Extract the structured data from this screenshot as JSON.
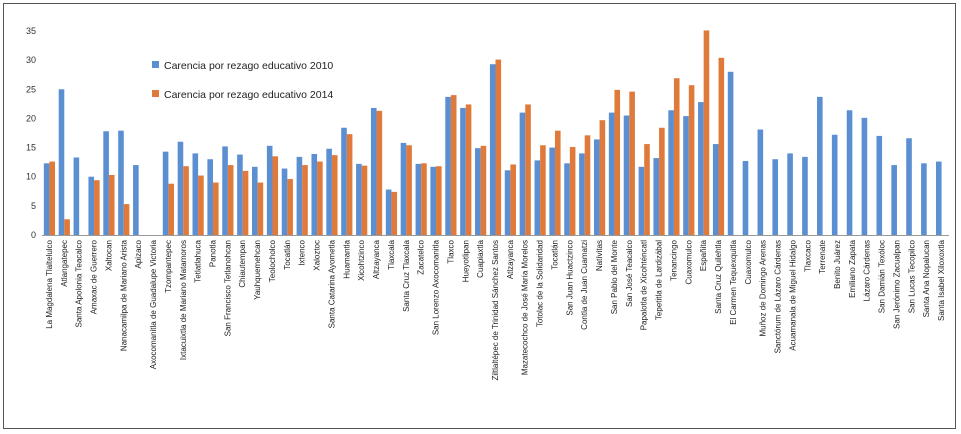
{
  "chart_data": {
    "type": "bar",
    "title": "",
    "xlabel": "",
    "ylabel": "",
    "ylim": [
      0,
      35
    ],
    "yticks": [
      0,
      5,
      10,
      15,
      20,
      25,
      30,
      35
    ],
    "grid": false,
    "legend_position": "top-left",
    "colors": {
      "2010": "#5b8fd1",
      "2014": "#e07a3a"
    },
    "series": [
      {
        "name": "Carencia por rezago educativo 2010"
      },
      {
        "name": "Carencia por rezago educativo 2014"
      }
    ],
    "categories": [
      "La Magdalena Tlaltelulco",
      "Atlangatepec",
      "Santa Apolonia Teacalco",
      "Amaxac de Guerrero",
      "Xaltocan",
      "Nanacamilpa de Mariano Arista",
      "Apizaco",
      "Axocomanitla de Guadalupe Victoria",
      "Tzompantepec",
      "Ixtacuixtla de Mariano Matamoros",
      "Tetlatlahuca",
      "Panotla",
      "San Francisco Tetlanohcan",
      "Chiautempan",
      "Yauhquemehcan",
      "Teolocholco",
      "Tocatlán",
      "Ixtenco",
      "Xaloztoc",
      "Santa Catarina Ayometla",
      "Huamantla",
      "Xicohtzinco",
      "Altzayanca",
      "Tlaxcala",
      "Santa Cruz Tlaxcala",
      "Zacatelco",
      "San Lorenzo Axocomanitla",
      "Tlaxco",
      "Hueyotlipan",
      "Cuapiaxtla",
      "Ziltlaltépec de Trinidad Sánchez Santos",
      "Atlzayanca",
      "Mazatecochco de José María Morelos",
      "Totolac de la Solidaridad",
      "Tocatlán",
      "San Juan Huactzinco",
      "Contla de Juan Cuamatzi",
      "Natívitas",
      "San Pablo del Monte",
      "San José Teacalco",
      "Papalotla de Xicohténcatl",
      "Tepetitla de Lardizábal",
      "Tenancingo",
      "Cuaxomulco",
      "Españita",
      "Santa Cruz Quilehtla",
      "El Carmen Tequexquitla",
      "Cuaxomulco",
      "Muñoz de Domingo Arenas",
      "Sanctórum de Lázaro Cárdenas",
      "Acuamanala de Miguel Hidalgo",
      "Tlaxcaco",
      "Terrenate",
      "Benito Juárez",
      "Emiliano Zapata",
      "Lázaro Cárdenas",
      "San Damián Texóloc",
      "San Jerónimo Zacualpan",
      "San Lucas Tecopilco",
      "Santa Ana Nopalucan",
      "Santa Isabel Xiloxoxtla"
    ],
    "cat_labels": [
      "La Magdalena Tlaltelulco",
      "Atlangatepec",
      "Santa Apolonia Teacalco",
      "Amaxac de Guerrero",
      "Xaltocan",
      "Nanacamilpa de Mariano Arista",
      "Apizaco",
      "Axocomanitla de Guadalupe Victoria",
      "Tzompantepec",
      "Ixtacuixtla de Mariano Matamoros",
      "Tetlatlahuca",
      "Panotla",
      "San Francisco Tetlanohcan",
      "Chiautempan",
      "Yauhquemehcan",
      "Teolocholco",
      "Tocatlán",
      "Ixtenco",
      "Xaloztoc",
      "Santa Catarina Ayometla",
      "Huamantla",
      "Xicohtzinco",
      "Altzayanca",
      "Tlaxcala",
      "Santa Cruz Tlaxcala",
      "Zacatelco",
      "San Lorenzo Axocomanitla",
      "Tlaxco",
      "Hueyotlipan",
      "Cuapiaxtla",
      "Ziltlaltépec de Trinidad Sánchez Santos",
      "Atlzayanca",
      "Mazatecochco de José María Morelos",
      "Totolac de la Solidaridad",
      "Tocatlán",
      "San Juan Huactzinco",
      "Contla de Juan Cuamatzi",
      "Natívitas",
      "San Pablo del Monte",
      "San José Teacalco",
      "Papalotla de Xicohténcatl",
      "Tepetitla de Lardizábal",
      "Tenancingo",
      "Cuaxomulco",
      "Españita",
      "Santa Cruz Quilehtla",
      "El Carmen Tequexquitla",
      "Cuaxomulco",
      "Muñoz de Domingo Arenas",
      "Sanctórum de Lázaro Cárdenas",
      "Acuamanala de Miguel Hidalgo",
      "Tlaxcaco",
      "Terrenate",
      "Benito Juárez",
      "Emiliano Zapata",
      "Lázaro Cárdenas",
      "San Damián Texóloc",
      "San Jerónimo Zacualpan",
      "San Lucas Tecopilco",
      "Santa Ana Nopalucan",
      "Santa Isabel Xiloxoxtla"
    ],
    "values_2010": [
      12.3,
      25.0,
      13.3,
      10.0,
      17.8,
      17.9,
      12.0,
      null,
      14.3,
      16.0,
      14.0,
      13.0,
      15.2,
      13.8,
      11.7,
      15.3,
      11.4,
      13.4,
      13.9,
      14.8,
      18.4,
      12.2,
      21.8,
      7.8,
      15.8,
      12.2,
      11.7,
      23.7,
      21.8,
      14.9,
      29.3,
      11.1,
      21.0,
      12.8,
      15.0,
      12.3,
      14.0,
      16.4,
      21.0,
      20.5,
      11.7,
      13.2,
      21.4,
      20.4,
      22.8,
      15.6,
      28.0,
      12.7,
      18.1,
      13.0,
      14.0,
      13.4,
      23.7,
      17.2,
      21.4,
      20.1,
      17.0,
      12.0,
      16.6,
      12.3,
      12.6
    ],
    "values_2014": [
      12.6,
      2.7,
      null,
      9.4,
      10.3,
      5.3,
      null,
      null,
      8.8,
      11.8,
      10.2,
      9.0,
      12.0,
      11.0,
      9.0,
      13.5,
      9.6,
      12.0,
      12.6,
      13.7,
      17.3,
      11.9,
      21.3,
      7.4,
      15.4,
      12.3,
      11.8,
      24.0,
      22.4,
      15.3,
      30.1,
      12.1,
      22.4,
      15.4,
      17.9,
      15.1,
      17.1,
      19.7,
      24.9,
      24.6,
      15.6,
      18.4,
      26.9,
      25.7,
      35.1,
      30.4,
      null,
      null,
      null,
      null,
      null,
      null,
      null,
      null,
      null,
      null,
      null,
      null,
      null,
      null,
      null
    ],
    "legend": [
      "Carencia por rezago educativo 2010",
      "Carencia por rezago educativo 2014"
    ]
  }
}
